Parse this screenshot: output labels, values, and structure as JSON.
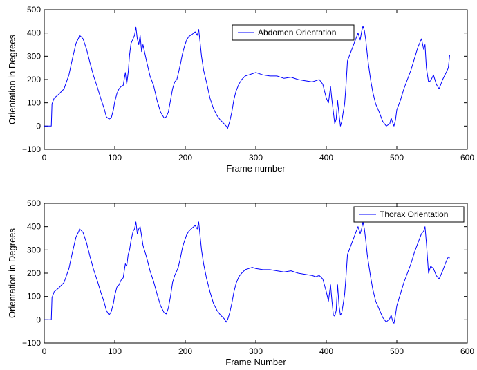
{
  "colors": {
    "line": "#0000ff",
    "axes": "#000000",
    "background": "#ffffff"
  },
  "chart_data": [
    {
      "type": "line",
      "xlabel": "Frame number",
      "ylabel": "Orientation in Degrees",
      "xlim": [
        0,
        600
      ],
      "ylim": [
        -100,
        500
      ],
      "xticks": [
        0,
        100,
        200,
        300,
        400,
        500,
        600
      ],
      "yticks": [
        -100,
        0,
        100,
        200,
        300,
        400,
        500
      ],
      "grid": false,
      "legend_position": "top-center",
      "series": [
        {
          "name": "Abdomen Orientation",
          "x": [
            0,
            10,
            11,
            14,
            20,
            28,
            35,
            40,
            45,
            49,
            50,
            52,
            55,
            60,
            65,
            70,
            75,
            80,
            85,
            88,
            92,
            95,
            98,
            100,
            103,
            106,
            109,
            112,
            115,
            117,
            119,
            121,
            123,
            126,
            128,
            130,
            132,
            134,
            136,
            138,
            140,
            145,
            150,
            155,
            160,
            165,
            170,
            173,
            176,
            179,
            182,
            185,
            188,
            190,
            193,
            196,
            199,
            202,
            205,
            210,
            214,
            217,
            219,
            221,
            223,
            226,
            230,
            235,
            240,
            245,
            250,
            255,
            258,
            260,
            263,
            266,
            269,
            272,
            276,
            280,
            285,
            290,
            295,
            300,
            310,
            320,
            330,
            340,
            350,
            360,
            370,
            380,
            385,
            390,
            395,
            400,
            403,
            406,
            408,
            410,
            412,
            414,
            416,
            418,
            420,
            422,
            424,
            426,
            428,
            430,
            435,
            440,
            445,
            448,
            450,
            452,
            454,
            456,
            458,
            460,
            463,
            466,
            470,
            475,
            480,
            485,
            490,
            492,
            494,
            496,
            498,
            500,
            505,
            510,
            515,
            520,
            525,
            530,
            535,
            538,
            540,
            542,
            545,
            548,
            552,
            556,
            560,
            565,
            570,
            573,
            575
          ],
          "y": [
            0,
            0,
            95,
            120,
            135,
            160,
            220,
            290,
            355,
            380,
            390,
            385,
            375,
            330,
            270,
            215,
            170,
            120,
            75,
            40,
            30,
            35,
            70,
            105,
            140,
            160,
            170,
            175,
            230,
            180,
            230,
            305,
            355,
            375,
            390,
            425,
            375,
            350,
            390,
            320,
            350,
            280,
            215,
            175,
            110,
            60,
            35,
            40,
            60,
            110,
            160,
            190,
            200,
            225,
            265,
            310,
            345,
            370,
            385,
            395,
            405,
            390,
            415,
            360,
            300,
            240,
            190,
            120,
            75,
            45,
            25,
            10,
            0,
            -10,
            20,
            60,
            115,
            150,
            180,
            200,
            215,
            220,
            225,
            230,
            220,
            215,
            215,
            205,
            210,
            200,
            195,
            190,
            195,
            200,
            180,
            120,
            100,
            170,
            110,
            60,
            10,
            30,
            110,
            50,
            0,
            20,
            60,
            95,
            180,
            280,
            320,
            360,
            400,
            370,
            405,
            430,
            410,
            370,
            310,
            260,
            195,
            145,
            95,
            60,
            20,
            0,
            10,
            35,
            15,
            0,
            25,
            70,
            110,
            160,
            200,
            240,
            290,
            340,
            375,
            330,
            350,
            250,
            190,
            195,
            220,
            180,
            160,
            200,
            230,
            250,
            305
          ]
        }
      ]
    },
    {
      "type": "line",
      "xlabel": "Frame Number",
      "ylabel": "Orientation in Degrees",
      "xlim": [
        0,
        600
      ],
      "ylim": [
        -100,
        500
      ],
      "xticks": [
        0,
        100,
        200,
        300,
        400,
        500,
        600
      ],
      "yticks": [
        -100,
        0,
        100,
        200,
        300,
        400,
        500
      ],
      "grid": false,
      "legend_position": "top-right",
      "series": [
        {
          "name": "Thorax Orientation",
          "x": [
            0,
            10,
            11,
            14,
            20,
            28,
            35,
            40,
            45,
            49,
            50,
            52,
            55,
            60,
            65,
            70,
            75,
            80,
            85,
            88,
            92,
            95,
            98,
            100,
            103,
            106,
            109,
            112,
            115,
            117,
            119,
            121,
            123,
            126,
            128,
            130,
            132,
            134,
            136,
            138,
            140,
            145,
            150,
            155,
            160,
            165,
            170,
            173,
            176,
            179,
            182,
            185,
            188,
            190,
            193,
            196,
            199,
            202,
            205,
            210,
            214,
            217,
            219,
            221,
            223,
            226,
            230,
            235,
            240,
            245,
            250,
            255,
            258,
            260,
            263,
            266,
            269,
            272,
            276,
            280,
            285,
            290,
            295,
            300,
            310,
            320,
            330,
            340,
            350,
            360,
            370,
            380,
            385,
            390,
            395,
            400,
            403,
            406,
            408,
            410,
            412,
            414,
            416,
            418,
            420,
            422,
            424,
            426,
            428,
            430,
            435,
            440,
            445,
            448,
            450,
            452,
            454,
            456,
            458,
            460,
            463,
            466,
            470,
            475,
            480,
            485,
            490,
            492,
            494,
            496,
            498,
            500,
            505,
            510,
            515,
            520,
            525,
            530,
            535,
            538,
            540,
            542,
            545,
            548,
            552,
            556,
            560,
            565,
            570,
            573,
            575
          ],
          "y": [
            0,
            0,
            95,
            120,
            135,
            160,
            220,
            290,
            355,
            380,
            390,
            385,
            375,
            330,
            270,
            215,
            170,
            120,
            75,
            40,
            20,
            35,
            70,
            105,
            140,
            150,
            170,
            180,
            240,
            230,
            280,
            300,
            340,
            380,
            390,
            420,
            370,
            390,
            400,
            360,
            320,
            270,
            210,
            165,
            110,
            60,
            30,
            25,
            50,
            100,
            160,
            190,
            210,
            225,
            265,
            310,
            340,
            365,
            380,
            395,
            405,
            390,
            420,
            360,
            300,
            240,
            180,
            120,
            70,
            40,
            20,
            5,
            -10,
            0,
            30,
            70,
            120,
            155,
            185,
            200,
            215,
            220,
            225,
            220,
            215,
            215,
            210,
            205,
            210,
            200,
            195,
            190,
            185,
            190,
            175,
            120,
            80,
            150,
            80,
            20,
            15,
            40,
            150,
            60,
            20,
            30,
            70,
            110,
            190,
            280,
            320,
            360,
            400,
            370,
            390,
            420,
            390,
            340,
            280,
            240,
            180,
            130,
            80,
            45,
            10,
            -10,
            5,
            20,
            -5,
            -15,
            20,
            60,
            110,
            160,
            200,
            240,
            290,
            330,
            370,
            380,
            400,
            330,
            200,
            230,
            220,
            190,
            175,
            210,
            250,
            270,
            265
          ]
        }
      ]
    }
  ]
}
